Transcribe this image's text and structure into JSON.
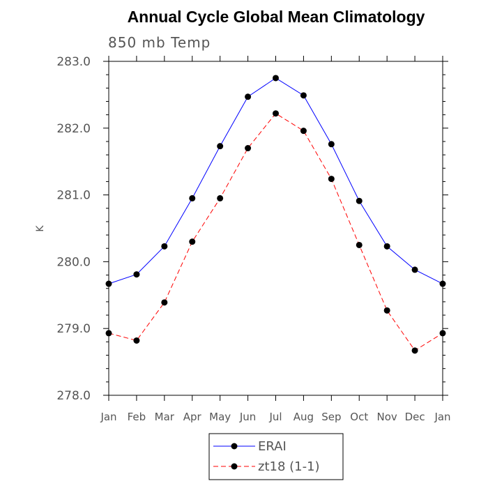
{
  "chart_data": {
    "type": "line",
    "title": "Annual Cycle Global Mean Climatology",
    "subtitle": "850 mb Temp",
    "xlabel": "",
    "ylabel": "K",
    "ylim": [
      278.0,
      283.0
    ],
    "yticks": [
      "278.0",
      "279.0",
      "280.0",
      "281.0",
      "282.0",
      "283.0"
    ],
    "categories": [
      "Jan",
      "Feb",
      "Mar",
      "Apr",
      "May",
      "Jun",
      "Jul",
      "Aug",
      "Sep",
      "Oct",
      "Nov",
      "Dec",
      "Jan"
    ],
    "series": [
      {
        "name": "ERAI",
        "color": "#0000ff",
        "dashed": false,
        "values": [
          279.67,
          279.81,
          280.23,
          280.95,
          281.73,
          282.47,
          282.75,
          282.49,
          281.76,
          280.91,
          280.23,
          279.88,
          279.67
        ]
      },
      {
        "name": "zt18 (1-1)",
        "color": "#ff0000",
        "dashed": true,
        "values": [
          278.93,
          278.82,
          279.39,
          280.3,
          280.95,
          281.7,
          282.22,
          281.96,
          281.24,
          280.25,
          279.27,
          278.67,
          278.93
        ]
      }
    ],
    "legend": {
      "placement": "bottom-center"
    }
  }
}
